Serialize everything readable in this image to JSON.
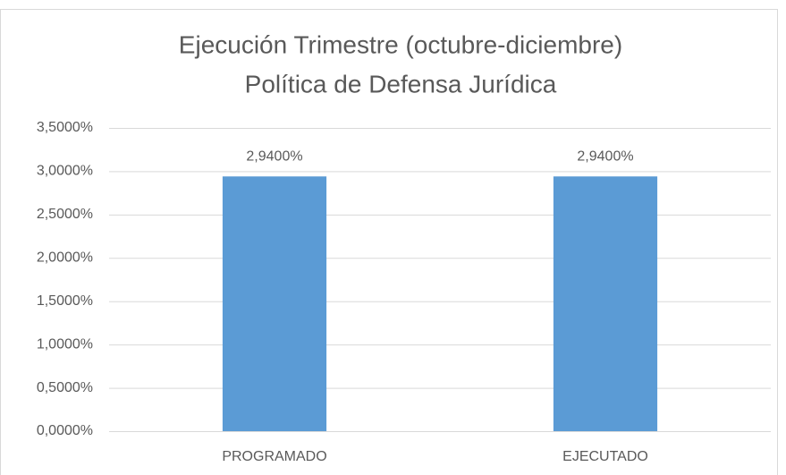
{
  "chart_data": {
    "type": "bar",
    "title": [
      "Ejecución Trimestre (octubre-diciembre)",
      "Política de Defensa Jurídica"
    ],
    "categories": [
      "PROGRAMADO",
      "EJECUTADO"
    ],
    "values": [
      2.94,
      2.94
    ],
    "value_labels": [
      "2,9400%",
      "2,9400%"
    ],
    "color": "#5b9bd5",
    "ylim": [
      0,
      3.5
    ],
    "yticks": [
      {
        "value": 0,
        "label": "0,0000%"
      },
      {
        "value": 0.5,
        "label": "0,5000%"
      },
      {
        "value": 1,
        "label": "1,0000%"
      },
      {
        "value": 1.5,
        "label": "1,5000%"
      },
      {
        "value": 2,
        "label": "2,0000%"
      },
      {
        "value": 2.5,
        "label": "2,5000%"
      },
      {
        "value": 3,
        "label": "3,0000%"
      },
      {
        "value": 3.5,
        "label": "3,5000%"
      }
    ],
    "grid": true
  }
}
